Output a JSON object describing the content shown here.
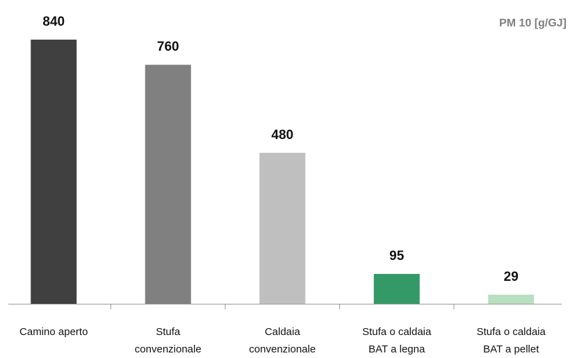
{
  "chart_data": {
    "type": "bar",
    "title": "PM 10 [g/GJ]",
    "categories": [
      [
        "Camino aperto"
      ],
      [
        "Stufa",
        "convenzionale"
      ],
      [
        "Caldaia",
        "convenzionale"
      ],
      [
        "Stufa o caldaia",
        "BAT a legna"
      ],
      [
        "Stufa o caldaia",
        "BAT a pellet"
      ]
    ],
    "values": [
      840,
      760,
      480,
      95,
      29
    ],
    "colors": [
      "#404040",
      "#808080",
      "#bfbfbf",
      "#339966",
      "#b8dfc0"
    ]
  }
}
